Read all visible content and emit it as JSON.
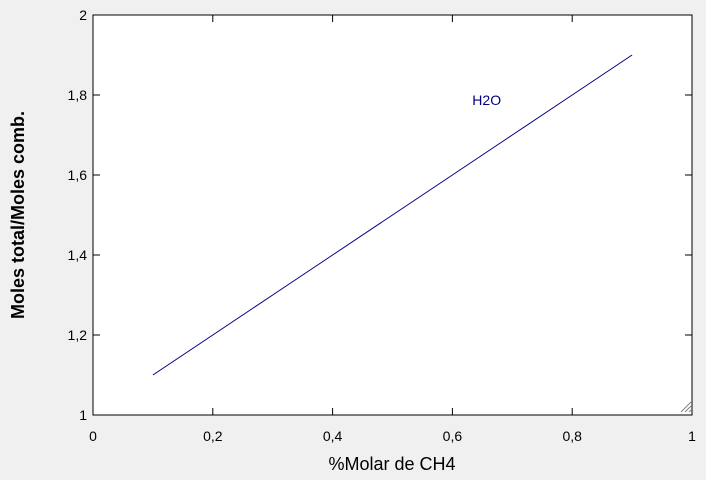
{
  "chart_data": {
    "type": "line",
    "xlabel": "%Molar de CH4",
    "ylabel": "Moles total/Moles comb.",
    "x": [
      0.1,
      0.2,
      0.3,
      0.4,
      0.5,
      0.6,
      0.7,
      0.8,
      0.9
    ],
    "series": [
      {
        "name": "H2O",
        "color": "#000080",
        "values": [
          1.1,
          1.2,
          1.3,
          1.4,
          1.5,
          1.6,
          1.7,
          1.8,
          1.9
        ]
      }
    ],
    "xlim": [
      0,
      1
    ],
    "xticks": [
      0,
      {
        "value": 0.2,
        "label": "0,2"
      },
      {
        "value": 0.4,
        "label": "0,4"
      },
      {
        "value": 0.6,
        "label": "0,6"
      },
      {
        "value": 0.8,
        "label": "0,8"
      },
      1
    ],
    "ylim": [
      1,
      2
    ],
    "yticks": [
      1,
      {
        "value": 1.2,
        "label": "1,2"
      },
      {
        "value": 1.4,
        "label": "1,4"
      },
      {
        "value": 1.6,
        "label": "1,6"
      },
      {
        "value": 1.8,
        "label": "1,8"
      },
      2
    ],
    "grid": false
  }
}
